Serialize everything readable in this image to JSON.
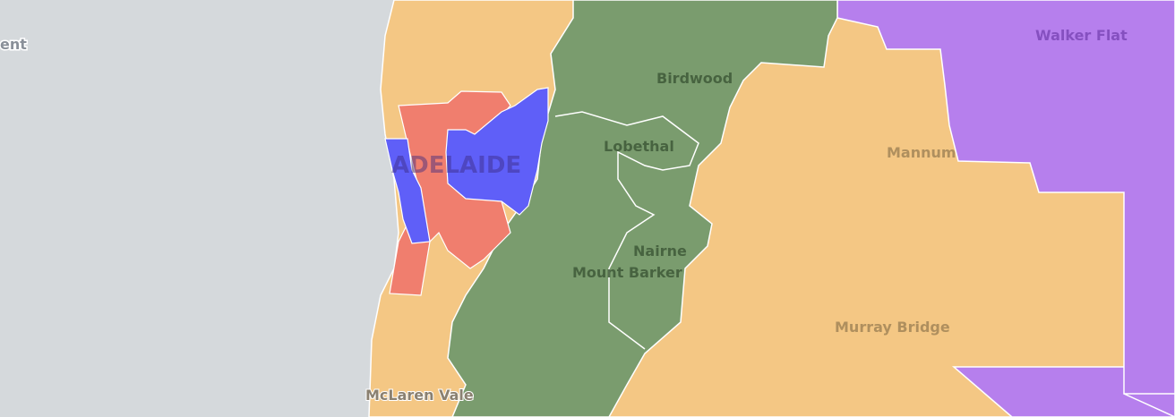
{
  "colors": {
    "sea": "#d5d9dc",
    "orange": "#f4c784",
    "green": "#7a9c6e",
    "purple": "#b67fed",
    "red": "#f07e6e",
    "blue": "#5f5ff8"
  },
  "labels": {
    "partial_left": "ent",
    "walker_flat": "Walker Flat",
    "birdwood": "Birdwood",
    "lobethal": "Lobethal",
    "mannum": "Mannum",
    "adelaide": "ADELAIDE",
    "nairne": "Nairne",
    "mount_barker": "Mount Barker",
    "murray_bridge": "Murray Bridge",
    "mclaren_vale": "McLaren Vale"
  }
}
